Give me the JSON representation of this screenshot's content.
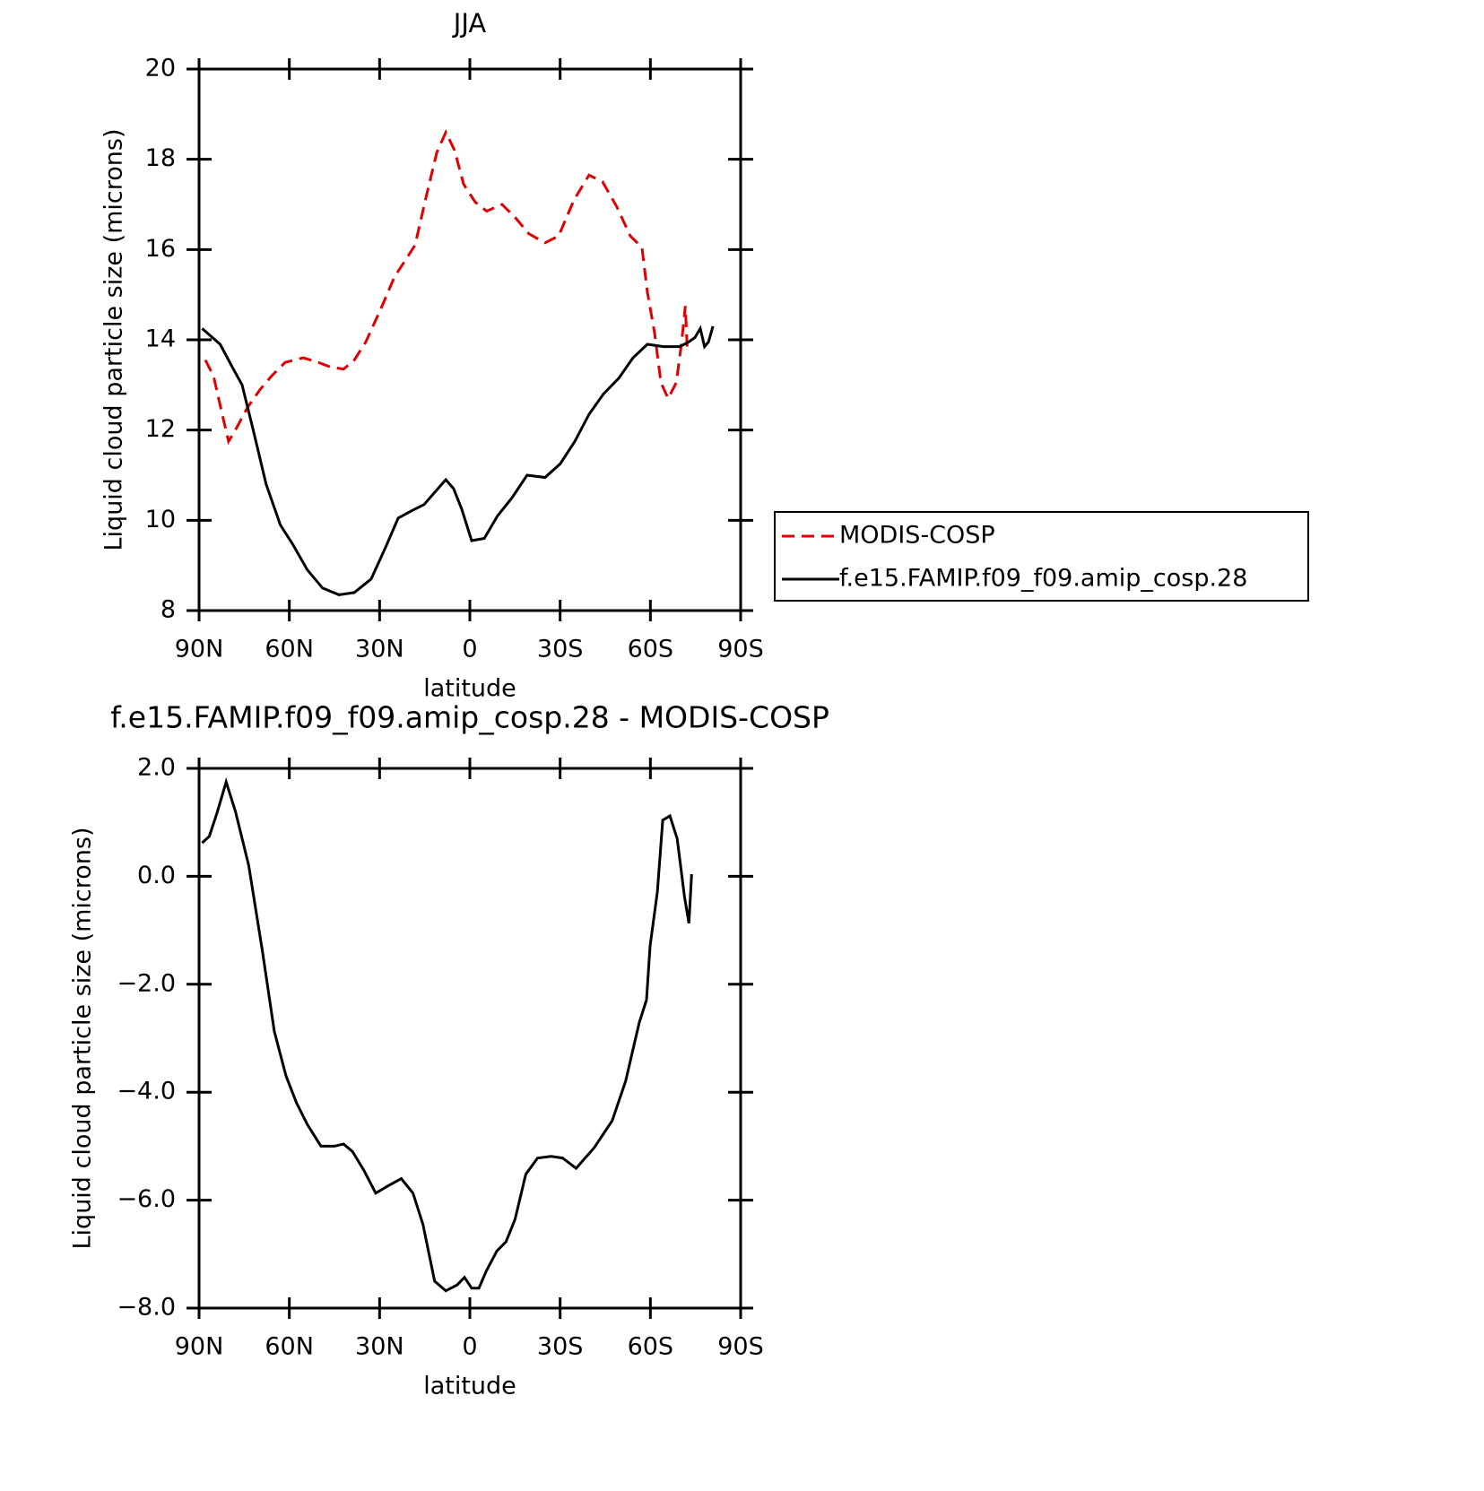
{
  "chart_data": [
    {
      "type": "line",
      "title": "JJA",
      "xlabel": "latitude",
      "ylabel": "Liquid cloud particle size (microns)",
      "xlim": [
        90,
        -90
      ],
      "xticks": [
        {
          "value": 90,
          "label": "90N"
        },
        {
          "value": 60,
          "label": "60N"
        },
        {
          "value": 30,
          "label": "30N"
        },
        0,
        {
          "value": -30,
          "label": "30S"
        },
        {
          "value": -60,
          "label": "60S"
        },
        {
          "value": -90,
          "label": "90S"
        }
      ],
      "ylim": [
        8,
        20
      ],
      "yticks": [
        8,
        10,
        12,
        14,
        16,
        18,
        20
      ],
      "legend": "right",
      "series": [
        {
          "name": "MODIS-COSP",
          "color": "#e00000",
          "dash": true,
          "x": [
            87.9,
            85.2,
            82.5,
            80.2,
            77.5,
            73.9,
            69.7,
            65.9,
            61.4,
            55.4,
            50.4,
            46.5,
            42,
            38.4,
            34.6,
            29.5,
            25,
            20.6,
            18.2,
            14.6,
            11,
            8,
            5.1,
            2.1,
            -1.8,
            -5.6,
            -10.7,
            -15.2,
            -19.6,
            -25,
            -29.5,
            -34.6,
            -39.6,
            -44.1,
            -48.8,
            -53.3,
            -57.2,
            -59,
            -61.4,
            -63.5,
            -65.9,
            -68.6,
            -70.4,
            -71.6,
            -72.2
          ],
          "values": [
            13.55,
            13.2,
            12.4,
            11.75,
            12.05,
            12.5,
            12.9,
            13.2,
            13.5,
            13.6,
            13.5,
            13.4,
            13.35,
            13.55,
            13.95,
            14.7,
            15.4,
            15.85,
            16.1,
            17.15,
            18.15,
            18.6,
            18.2,
            17.45,
            17.05,
            16.85,
            17.0,
            16.7,
            16.35,
            16.15,
            16.3,
            17.1,
            17.65,
            17.5,
            16.95,
            16.3,
            16.05,
            15.05,
            14.15,
            13.05,
            12.7,
            13.05,
            13.95,
            14.75,
            13.85
          ]
        },
        {
          "name": "f.e15.FAMIP.f09_f09.amip_cosp.28",
          "color": "#000000",
          "dash": false,
          "x": [
            89,
            83,
            79,
            75.7,
            72,
            67.7,
            63,
            58.7,
            54,
            49,
            43.5,
            38.4,
            32.8,
            28,
            23.8,
            19.7,
            15.2,
            11.3,
            8,
            5.4,
            2.7,
            -0.6,
            -4.8,
            -9.2,
            -14,
            -19,
            -25,
            -30,
            -34.9,
            -39.6,
            -44.4,
            -49.5,
            -54.2,
            -59,
            -64.4,
            -69.7,
            -72.7,
            -74.8,
            -76.6,
            -78,
            -79.3,
            -80.8
          ],
          "values": [
            14.25,
            13.9,
            13.4,
            13.0,
            12.0,
            10.8,
            9.9,
            9.45,
            8.9,
            8.5,
            8.35,
            8.4,
            8.7,
            9.4,
            10.05,
            10.2,
            10.35,
            10.65,
            10.9,
            10.7,
            10.25,
            9.55,
            9.6,
            10.1,
            10.5,
            11.0,
            10.95,
            11.25,
            11.75,
            12.35,
            12.8,
            13.15,
            13.6,
            13.9,
            13.85,
            13.85,
            13.95,
            14.05,
            14.25,
            13.85,
            13.95,
            14.3
          ]
        }
      ]
    },
    {
      "type": "line",
      "title": "f.e15.FAMIP.f09_f09.amip_cosp.28 - MODIS-COSP",
      "xlabel": "latitude",
      "ylabel": "Liquid cloud particle size (microns)",
      "xlim": [
        90,
        -90
      ],
      "xticks": [
        {
          "value": 90,
          "label": "90N"
        },
        {
          "value": 60,
          "label": "60N"
        },
        {
          "value": 30,
          "label": "30N"
        },
        0,
        {
          "value": -30,
          "label": "30S"
        },
        {
          "value": -60,
          "label": "60S"
        },
        {
          "value": -90,
          "label": "90S"
        }
      ],
      "ylim": [
        -8,
        2
      ],
      "yticks": [
        {
          "value": -8,
          "label": "−8.0"
        },
        {
          "value": -6,
          "label": "−6.0"
        },
        {
          "value": -4,
          "label": "−4.0"
        },
        {
          "value": -2,
          "label": "−2.0"
        },
        {
          "value": 0,
          "label": "0.0"
        },
        {
          "value": 2,
          "label": "2.0"
        }
      ],
      "series": [
        {
          "color": "#000000",
          "dash": false,
          "x": [
            89,
            86.6,
            83.9,
            81,
            77.9,
            73.5,
            69,
            65,
            61.1,
            57.6,
            54,
            49.5,
            45,
            42,
            39,
            35.2,
            31.3,
            27,
            22.8,
            18.9,
            15.6,
            11.7,
            8,
            4.2,
            1.8,
            -0.6,
            -3,
            -5.4,
            -9,
            -12,
            -15,
            -18.6,
            -22.5,
            -27,
            -30.8,
            -35.3,
            -41.3,
            -47.3,
            -51.8,
            -56.3,
            -58.7,
            -59.9,
            -62.3,
            -64.1,
            -66.5,
            -68.9,
            -71.3,
            -72.8,
            -73.7
          ],
          "values": [
            0.62,
            0.74,
            1.2,
            1.75,
            1.2,
            0.2,
            -1.37,
            -2.87,
            -3.7,
            -4.2,
            -4.6,
            -5.0,
            -5.0,
            -4.96,
            -5.1,
            -5.45,
            -5.87,
            -5.73,
            -5.6,
            -5.87,
            -6.45,
            -7.5,
            -7.68,
            -7.57,
            -7.43,
            -7.63,
            -7.63,
            -7.32,
            -6.94,
            -6.77,
            -6.36,
            -5.52,
            -5.22,
            -5.19,
            -5.22,
            -5.41,
            -5.03,
            -4.53,
            -3.79,
            -2.71,
            -2.29,
            -1.29,
            -0.29,
            1.04,
            1.12,
            0.7,
            -0.37,
            -0.87,
            0.04
          ]
        }
      ]
    }
  ]
}
